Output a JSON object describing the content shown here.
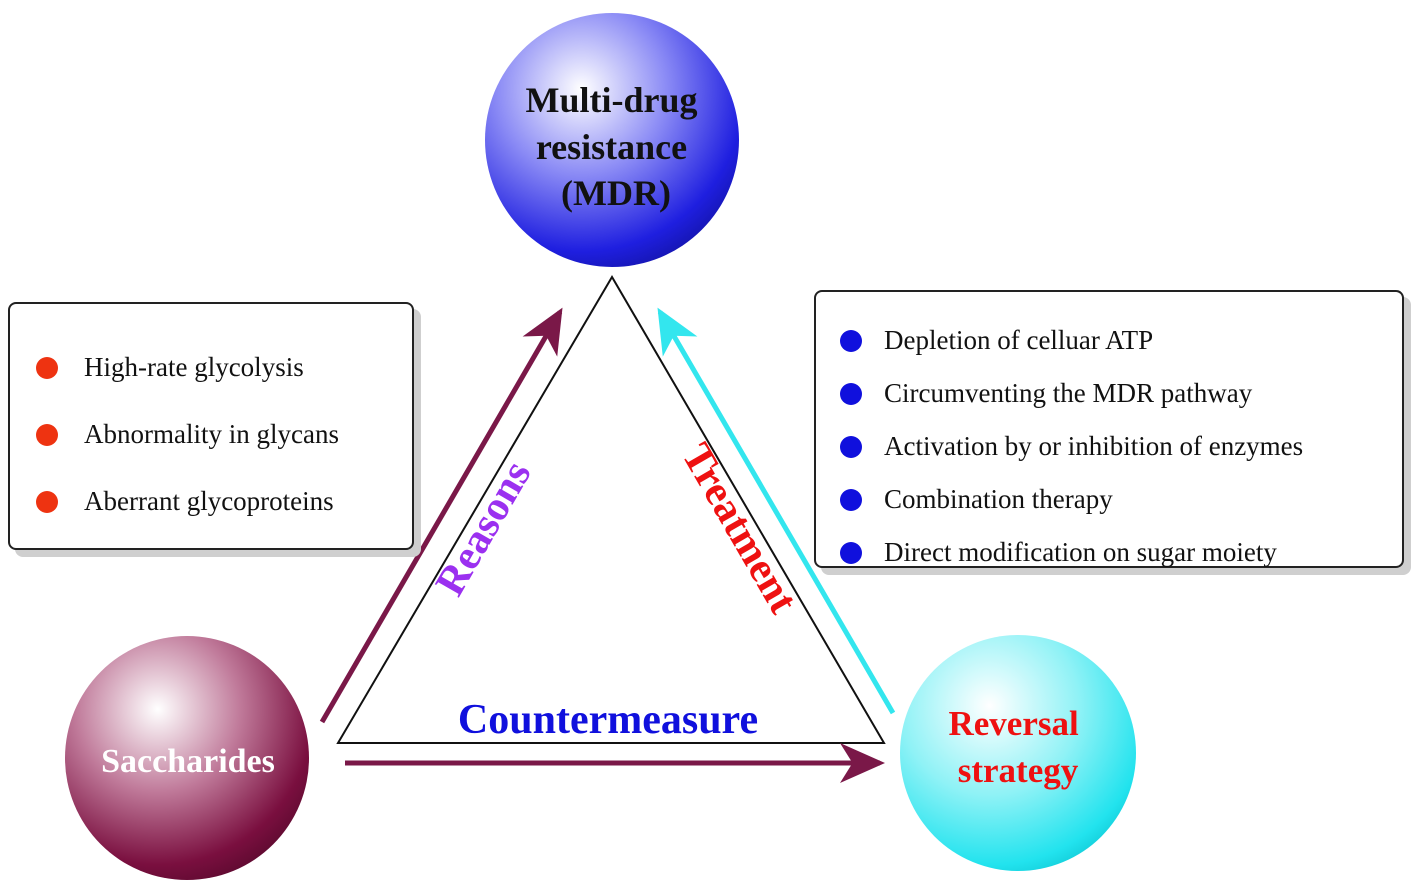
{
  "nodes": {
    "mdr": {
      "lines": [
        "Multi-drug",
        "resistance",
        "(MDR)"
      ]
    },
    "saccharides": {
      "label": "Saccharides"
    },
    "reversal": {
      "lines": [
        "Reversal",
        "strategy"
      ]
    }
  },
  "edges": {
    "reasons": {
      "label": "Reasons"
    },
    "treatment": {
      "label": "Treatment"
    },
    "countermeasure": {
      "label": "Countermeasure"
    }
  },
  "reasons_box": {
    "items": [
      "High-rate glycolysis",
      "Abnormality in glycans",
      "Aberrant glycoproteins"
    ]
  },
  "treatment_box": {
    "items": [
      "Depletion of celluar ATP",
      "Circumventing the MDR pathway",
      "Activation by or inhibition of enzymes",
      "Combination therapy",
      "Direct modification on sugar moiety"
    ]
  },
  "colors": {
    "mdr_sphere": "#1f1fe0",
    "saccharides_sphere": "#7a0f3f",
    "reversal_sphere": "#22e3ee",
    "reasons_arrow": "#7a1848",
    "treatment_arrow": "#33e6ee",
    "reasons_label": "#9b30f0",
    "treatment_label": "#ee1111",
    "countermeasure_label": "#1010dd",
    "reasons_bullet": "#ee3311",
    "treatment_bullet": "#1010dd",
    "reversal_text": "#ee1111"
  }
}
